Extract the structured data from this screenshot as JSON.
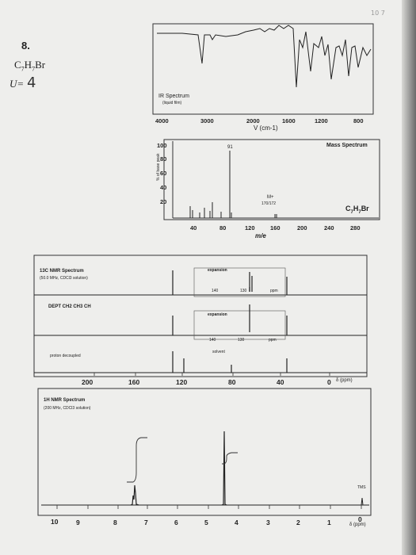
{
  "problem": {
    "number": "8.",
    "formula": "C7H7Br",
    "unsaturation_label": "U=",
    "unsaturation_handwritten": "4",
    "corner_note": "10 7"
  },
  "ir": {
    "title": "IR Spectrum",
    "subtitle": "(liquid film)",
    "xlabel": "V (cm-1)",
    "ticks": [
      "4000",
      "3000",
      "2000",
      "1600",
      "1200",
      "800"
    ]
  },
  "ms": {
    "title": "Mass Spectrum",
    "ylabel": "% of base peak",
    "xlabel": "m/e",
    "yticks": [
      "100",
      "80",
      "60",
      "40",
      "20"
    ],
    "xticks": [
      "40",
      "80",
      "120",
      "160",
      "200",
      "240",
      "280"
    ],
    "base_peak_label": "91",
    "molecular_ion_label": "M+",
    "molecular_ion_values": "170/172",
    "formula": "C7H7Br"
  },
  "c13": {
    "title": "13C NMR Spectrum",
    "subtitle": "(50.0 MHz, CDCl3 solution)",
    "dept_label": "DEPT  CH2  CH3  CH",
    "proton_decoupled": "proton decoupled",
    "expansion": "expansion",
    "expansion_ticks": [
      "140",
      "130",
      "ppm"
    ],
    "solvent": "solvent",
    "xticks": [
      "200",
      "160",
      "120",
      "80",
      "40",
      "0"
    ],
    "xunit": "δ (ppm)"
  },
  "h1": {
    "title": "1H NMR Spectrum",
    "subtitle": "(200 MHz, CDCl3 solution)",
    "tms": "TMS",
    "xticks": [
      "10",
      "9",
      "8",
      "7",
      "6",
      "5",
      "4",
      "3",
      "2",
      "1",
      "0"
    ],
    "xunit": "δ (ppm)"
  }
}
